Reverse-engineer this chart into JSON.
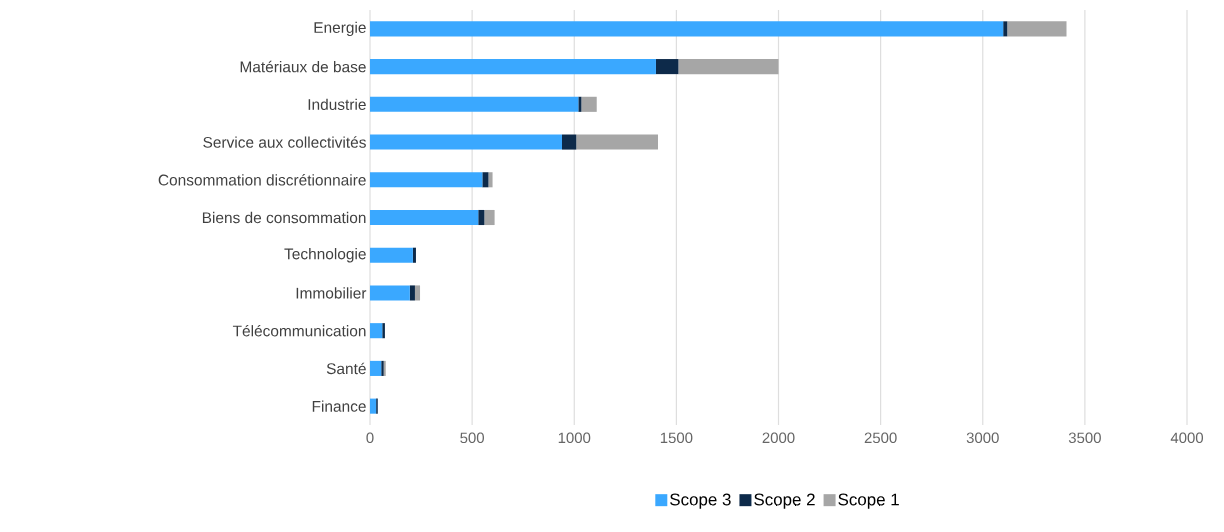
{
  "chart_data": {
    "type": "bar",
    "orientation": "horizontal",
    "stacked": true,
    "categories": [
      "Energie",
      "Matériaux de base",
      "Industrie",
      "Service aux collectivités",
      "Consommation discrétionnaire",
      "Biens de consommation",
      "Technologie",
      "Immobilier",
      "Télécommunication",
      "Santé",
      "Finance"
    ],
    "series": [
      {
        "name": "Scope 3",
        "color": "#3aa8ff",
        "values": [
          3100,
          1400,
          1020,
          940,
          550,
          530,
          210,
          195,
          60,
          55,
          30
        ]
      },
      {
        "name": "Scope 2",
        "color": "#0d2a4a",
        "values": [
          20,
          110,
          15,
          70,
          30,
          30,
          15,
          25,
          13,
          12,
          8
        ]
      },
      {
        "name": "Scope 1",
        "color": "#a6a6a6",
        "values": [
          290,
          490,
          75,
          400,
          20,
          50,
          0,
          25,
          0,
          10,
          0
        ]
      }
    ],
    "xlim": [
      0,
      4000
    ],
    "xticks": [
      0,
      500,
      1000,
      1500,
      2000,
      2500,
      3000,
      3500,
      4000
    ],
    "grid": "x",
    "legend": "bottom"
  }
}
